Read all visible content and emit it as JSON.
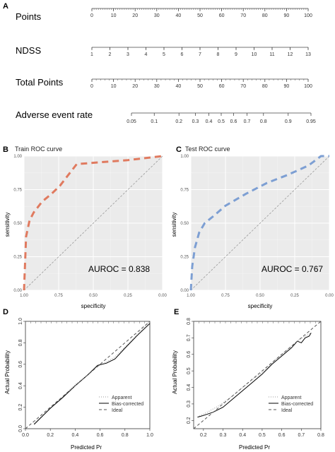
{
  "panels": {
    "a": "A",
    "b": "B",
    "c": "C",
    "d": "D",
    "e": "E"
  },
  "nomogram": {
    "rows": [
      {
        "label": "Points",
        "tick_labels": [
          "0",
          "10",
          "20",
          "30",
          "40",
          "50",
          "60",
          "70",
          "80",
          "90",
          "100"
        ],
        "values": [
          0,
          10,
          20,
          30,
          40,
          50,
          60,
          70,
          80,
          90,
          100
        ],
        "range": [
          0,
          100
        ],
        "minor_step": 1
      },
      {
        "label": "NDSS",
        "tick_labels": [
          "1",
          "2",
          "3",
          "4",
          "5",
          "6",
          "7",
          "8",
          "9",
          "10",
          "11",
          "12",
          "13"
        ],
        "values": [
          1,
          2,
          3,
          4,
          5,
          6,
          7,
          8,
          9,
          10,
          11,
          12,
          13
        ],
        "range": [
          1,
          13
        ],
        "minor_step": 1
      },
      {
        "label": "Total Points",
        "tick_labels": [
          "0",
          "10",
          "20",
          "30",
          "40",
          "50",
          "60",
          "70",
          "80",
          "90",
          "100"
        ],
        "values": [
          0,
          10,
          20,
          30,
          40,
          50,
          60,
          70,
          80,
          90,
          100
        ],
        "range": [
          0,
          100
        ],
        "minor_step": 2
      },
      {
        "label": "Adverse event rate",
        "tick_labels": [
          "0.05",
          "0.1",
          "0.2",
          "0.3",
          "0.4",
          "0.5",
          "0.6",
          "0.7",
          "0.8",
          "0.9",
          "0.95"
        ],
        "values": [
          0.05,
          0.1,
          0.2,
          0.3,
          0.4,
          0.5,
          0.6,
          0.7,
          0.8,
          0.9,
          0.95
        ],
        "logit_scale": true
      }
    ]
  },
  "chart_data": [
    {
      "type": "line",
      "title": "Train ROC curve",
      "xlabel": "specificity",
      "ylabel": "sensitivity",
      "x_reversed": true,
      "xlim": [
        1.0,
        0.0
      ],
      "ylim": [
        0.0,
        1.0
      ],
      "x_ticks": [
        "1.00",
        "0.75",
        "0.50",
        "0.25",
        "0.00"
      ],
      "y_ticks": [
        "0.00",
        "0.25",
        "0.50",
        "0.75",
        "1.00"
      ],
      "annotation": "AUROC = 0.838",
      "series": [
        {
          "color": "#e07a5f",
          "dashed": true,
          "x": [
            1.0,
            0.985,
            0.96,
            0.93,
            0.87,
            0.8,
            0.74,
            0.62,
            0.5,
            0.25,
            0.0
          ],
          "y": [
            0.0,
            0.4,
            0.52,
            0.58,
            0.66,
            0.72,
            0.78,
            0.94,
            0.95,
            0.97,
            1.0
          ]
        }
      ],
      "reference_line": true
    },
    {
      "type": "line",
      "title": "Test ROC curve",
      "xlabel": "specificity",
      "ylabel": "sensitivity",
      "x_reversed": true,
      "xlim": [
        1.0,
        0.0
      ],
      "ylim": [
        0.0,
        1.0
      ],
      "x_ticks": [
        "1.00",
        "0.75",
        "0.50",
        "0.25",
        "0.00"
      ],
      "y_ticks": [
        "0.00",
        "0.25",
        "0.50",
        "0.75",
        "1.00"
      ],
      "annotation": "AUROC = 0.767",
      "series": [
        {
          "color": "#7d9fd3",
          "dashed": true,
          "x": [
            1.0,
            0.99,
            0.97,
            0.94,
            0.9,
            0.84,
            0.75,
            0.6,
            0.45,
            0.3,
            0.15,
            0.06,
            0.0
          ],
          "y": [
            0.0,
            0.18,
            0.32,
            0.43,
            0.5,
            0.55,
            0.63,
            0.72,
            0.8,
            0.86,
            0.93,
            1.0,
            1.0
          ]
        }
      ],
      "reference_line": true
    },
    {
      "type": "line",
      "xlabel": "Predicted Pr",
      "ylabel": "Actual Probability",
      "xlim": [
        0.0,
        1.0
      ],
      "ylim": [
        0.0,
        1.0
      ],
      "x_ticks": [
        "0.0",
        "0.2",
        "0.4",
        "0.6",
        "0.8",
        "1.0"
      ],
      "y_ticks": [
        "0.0",
        "0.2",
        "0.4",
        "0.6",
        "0.8",
        "1.0"
      ],
      "legend_position": "bottom-right",
      "series": [
        {
          "name": "Apparent",
          "style": "dotted",
          "color": "#999999",
          "x": [
            0.07,
            0.2,
            0.3,
            0.4,
            0.5,
            0.58,
            0.65,
            0.72,
            0.8,
            0.9,
            1.0
          ],
          "y": [
            0.05,
            0.19,
            0.3,
            0.41,
            0.5,
            0.58,
            0.62,
            0.67,
            0.76,
            0.88,
            1.0
          ]
        },
        {
          "name": "Bias-corrected",
          "style": "solid",
          "color": "#000000",
          "x": [
            0.07,
            0.2,
            0.3,
            0.4,
            0.5,
            0.58,
            0.65,
            0.72,
            0.8,
            0.9,
            1.0
          ],
          "y": [
            0.04,
            0.19,
            0.29,
            0.4,
            0.5,
            0.59,
            0.61,
            0.65,
            0.75,
            0.87,
            0.98
          ]
        },
        {
          "name": "Ideal",
          "style": "dashed",
          "color": "#555555",
          "x": [
            0.0,
            1.0
          ],
          "y": [
            0.0,
            1.0
          ]
        }
      ],
      "rug_top": true
    },
    {
      "type": "line",
      "xlabel": "Predicted Pr",
      "ylabel": "Actual Probability",
      "xlim": [
        0.15,
        0.8
      ],
      "ylim": [
        0.15,
        0.8
      ],
      "x_ticks": [
        "0.2",
        "0.3",
        "0.4",
        "0.5",
        "0.6",
        "0.7",
        "0.8"
      ],
      "y_ticks": [
        "0.2",
        "0.3",
        "0.4",
        "0.5",
        "0.6",
        "0.7",
        "0.8"
      ],
      "legend_position": "bottom-right",
      "series": [
        {
          "name": "Apparent",
          "style": "dotted",
          "color": "#999999",
          "x": [
            0.17,
            0.22,
            0.28,
            0.35,
            0.42,
            0.5,
            0.57,
            0.63,
            0.69,
            0.75
          ],
          "y": [
            0.22,
            0.25,
            0.29,
            0.35,
            0.42,
            0.49,
            0.57,
            0.63,
            0.69,
            0.73
          ]
        },
        {
          "name": "Bias-corrected",
          "style": "solid",
          "color": "#000000",
          "x": [
            0.17,
            0.2,
            0.25,
            0.3,
            0.35,
            0.4,
            0.45,
            0.5,
            0.55,
            0.6,
            0.65,
            0.68,
            0.7,
            0.72,
            0.74,
            0.75
          ],
          "y": [
            0.22,
            0.23,
            0.25,
            0.28,
            0.33,
            0.38,
            0.43,
            0.48,
            0.54,
            0.59,
            0.64,
            0.68,
            0.67,
            0.7,
            0.71,
            0.73
          ]
        },
        {
          "name": "Ideal",
          "style": "dashed",
          "color": "#555555",
          "x": [
            0.15,
            0.8
          ],
          "y": [
            0.15,
            0.8
          ]
        }
      ],
      "rug_top": true
    }
  ]
}
